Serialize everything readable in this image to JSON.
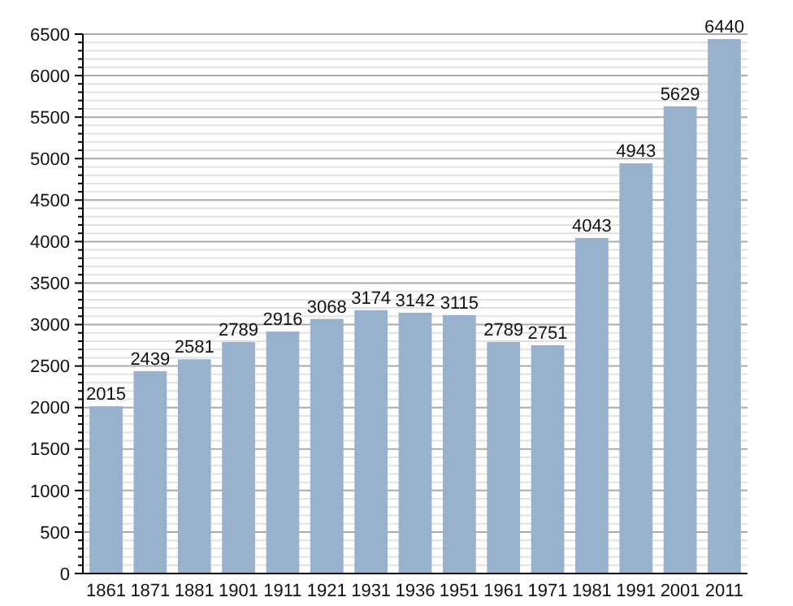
{
  "chart_data": {
    "type": "bar",
    "categories": [
      "1861",
      "1871",
      "1881",
      "1901",
      "1911",
      "1921",
      "1931",
      "1936",
      "1951",
      "1961",
      "1971",
      "1981",
      "1991",
      "2001",
      "2011"
    ],
    "values": [
      2015,
      2439,
      2581,
      2789,
      2916,
      3068,
      3174,
      3142,
      3115,
      2789,
      2751,
      4043,
      4943,
      5629,
      6440
    ],
    "color": "#98b1cc",
    "data_labels": true,
    "ylim": [
      0,
      6500
    ],
    "yticks": [
      0,
      {
        "value": 100,
        "label": null
      },
      {
        "value": 200,
        "label": null
      },
      {
        "value": 300,
        "label": null
      },
      {
        "value": 400,
        "label": null
      },
      500,
      {
        "value": 600,
        "label": null
      },
      {
        "value": 700,
        "label": null
      },
      {
        "value": 800,
        "label": null
      },
      {
        "value": 900,
        "label": null
      },
      1000,
      {
        "value": 1100,
        "label": null
      },
      {
        "value": 1200,
        "label": null
      },
      {
        "value": 1300,
        "label": null
      },
      {
        "value": 1400,
        "label": null
      },
      1500,
      {
        "value": 1600,
        "label": null
      },
      {
        "value": 1700,
        "label": null
      },
      {
        "value": 1800,
        "label": null
      },
      {
        "value": 1900,
        "label": null
      },
      2000,
      {
        "value": 2100,
        "label": null
      },
      {
        "value": 2200,
        "label": null
      },
      {
        "value": 2300,
        "label": null
      },
      {
        "value": 2400,
        "label": null
      },
      2500,
      {
        "value": 2600,
        "label": null
      },
      {
        "value": 2700,
        "label": null
      },
      {
        "value": 2800,
        "label": null
      },
      {
        "value": 2900,
        "label": null
      },
      3000,
      {
        "value": 3100,
        "label": null
      },
      {
        "value": 3200,
        "label": null
      },
      {
        "value": 3300,
        "label": null
      },
      {
        "value": 3400,
        "label": null
      },
      3500,
      {
        "value": 3600,
        "label": null
      },
      {
        "value": 3700,
        "label": null
      },
      {
        "value": 3800,
        "label": null
      },
      {
        "value": 3900,
        "label": null
      },
      4000,
      {
        "value": 4100,
        "label": null
      },
      {
        "value": 4200,
        "label": null
      },
      {
        "value": 4300,
        "label": null
      },
      {
        "value": 4400,
        "label": null
      },
      4500,
      {
        "value": 4600,
        "label": null
      },
      {
        "value": 4700,
        "label": null
      },
      {
        "value": 4800,
        "label": null
      },
      {
        "value": 4900,
        "label": null
      },
      5000,
      {
        "value": 5100,
        "label": null
      },
      {
        "value": 5200,
        "label": null
      },
      {
        "value": 5300,
        "label": null
      },
      {
        "value": 5400,
        "label": null
      },
      5500,
      {
        "value": 5600,
        "label": null
      },
      {
        "value": 5700,
        "label": null
      },
      {
        "value": 5800,
        "label": null
      },
      {
        "value": 5900,
        "label": null
      },
      6000,
      {
        "value": 6100,
        "label": null
      },
      {
        "value": 6200,
        "label": null
      },
      {
        "value": 6300,
        "label": null
      },
      {
        "value": 6400,
        "label": null
      },
      6500
    ],
    "grid": true
  }
}
